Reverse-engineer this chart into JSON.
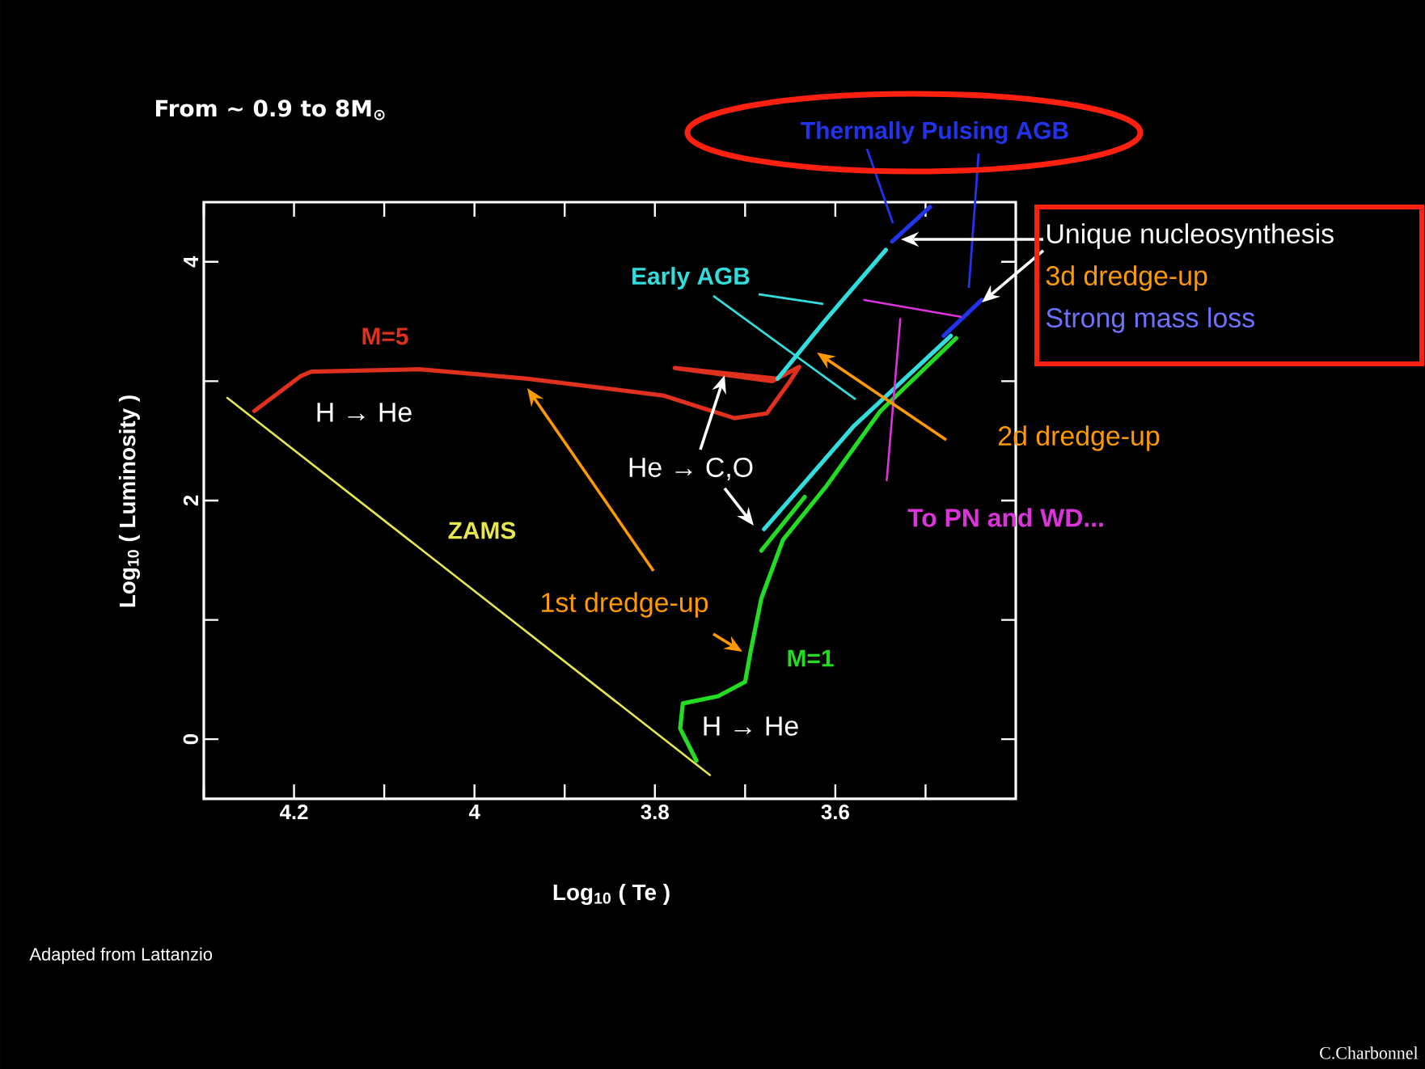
{
  "chart_data": {
    "type": "line",
    "title": "From ~ 0.9 to 8M$_{⊙}$",
    "xlabel": "Log$_{10}$ ( Te )",
    "ylabel": "Log$_{10}$ ( Luminosity )",
    "xlim": [
      4.3,
      3.4
    ],
    "ylim": [
      -0.5,
      4.5
    ],
    "xticks": [
      {
        "value": 4.3,
        "label": null
      },
      4.2,
      {
        "value": 4.1,
        "label": null
      },
      4,
      {
        "value": 3.9,
        "label": null
      },
      3.8,
      {
        "value": 3.7,
        "label": null
      },
      3.6,
      {
        "value": 3.5,
        "label": null
      }
    ],
    "yticks": [
      0,
      {
        "value": 1,
        "label": null
      },
      2,
      {
        "value": 3,
        "label": null
      },
      4
    ],
    "series": [
      {
        "name": "ZAMS",
        "color": "#e6e64d",
        "x": [
          4.274,
          3.739
        ],
        "values": [
          2.86,
          -0.3
        ]
      },
      {
        "name": "M=5",
        "color": "#e0301e",
        "x": [
          4.244,
          4.193,
          4.181,
          4.061,
          3.941,
          3.791,
          3.712,
          3.676,
          3.652,
          3.64,
          3.67,
          3.778,
          3.664
        ],
        "values": [
          2.75,
          3.04,
          3.08,
          3.1,
          3.02,
          2.88,
          2.69,
          2.73,
          2.98,
          3.12,
          3.0,
          3.11,
          3.02
        ]
      },
      {
        "name": "M=1",
        "color": "#22dd22",
        "x": [
          3.754,
          3.772,
          3.769,
          3.73,
          3.7,
          3.694,
          3.682,
          3.658,
          3.61,
          3.55,
          3.466,
          null,
          3.682,
          3.634
        ],
        "values": [
          -0.18,
          0.09,
          0.3,
          0.36,
          0.48,
          0.73,
          1.18,
          1.67,
          2.12,
          2.75,
          3.36,
          null,
          1.58,
          2.03
        ]
      },
      {
        "name": "Early AGB",
        "color": "#33dddd",
        "x": [
          3.664,
          3.61,
          3.544,
          null,
          3.679,
          3.58,
          3.472
        ],
        "values": [
          3.02,
          3.52,
          4.1,
          null,
          1.76,
          2.62,
          3.38
        ]
      },
      {
        "name": "Thermally Pulsing AGB",
        "color": "#2233ee",
        "x": [
          3.537,
          3.495,
          null,
          3.48,
          3.438
        ],
        "values": [
          4.17,
          4.46,
          null,
          3.38,
          3.68
        ]
      },
      {
        "name": "To PN and WD...",
        "color": "#dd33dd",
        "x": [
          3.568,
          3.461,
          null,
          3.528,
          3.543
        ],
        "values": [
          3.68,
          3.54,
          null,
          3.52,
          2.17
        ]
      }
    ],
    "annotations": [
      "H → He",
      "He → C,O",
      "1st dredge-up",
      "H → He",
      "2d dredge-up",
      "Unique nucleosynthesis",
      "3d dredge-up",
      "Strong mass loss",
      "Adapted from Lattanzio",
      "C.Charbonnel"
    ]
  }
}
